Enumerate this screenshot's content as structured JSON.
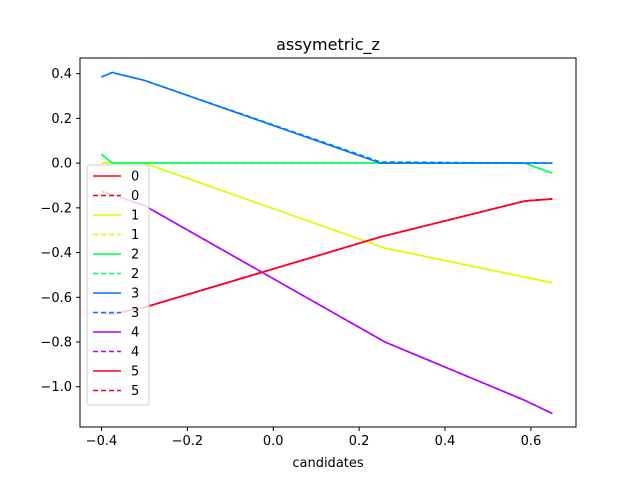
{
  "chart_data": {
    "type": "line",
    "title": "assymetric_z",
    "xlabel": "candidates",
    "ylabel": "",
    "xlim": [
      -0.45,
      0.705
    ],
    "ylim": [
      -1.18,
      0.47
    ],
    "xticks": [
      -0.4,
      -0.2,
      0.0,
      0.2,
      0.4,
      0.6
    ],
    "xtick_labels": [
      "−0.4",
      "−0.2",
      "0.0",
      "0.2",
      "0.4",
      "0.6"
    ],
    "yticks": [
      0.4,
      0.2,
      0.0,
      -0.2,
      -0.4,
      -0.6,
      -0.8,
      -1.0
    ],
    "ytick_labels": [
      "0.4",
      "0.2",
      "0.0",
      "−0.2",
      "−0.4",
      "−0.6",
      "−0.8",
      "−1.0"
    ],
    "grid": false,
    "legend_position": "lower-left",
    "series": [
      {
        "name": "0",
        "color": "#ff0000",
        "dash": "solid",
        "x": [
          -0.4,
          -0.375,
          -0.3,
          0.25,
          0.585,
          0.65
        ],
        "y": [
          -0.67,
          -0.675,
          -0.645,
          -0.33,
          -0.17,
          -0.16
        ]
      },
      {
        "name": "0",
        "color": "#ff0000",
        "dash": "dashed",
        "x": [
          -0.4,
          -0.375,
          -0.3,
          0.25,
          0.585,
          0.65
        ],
        "y": [
          -0.67,
          -0.675,
          -0.645,
          -0.33,
          -0.17,
          -0.16
        ]
      },
      {
        "name": "1",
        "color": "#d4ff00",
        "dash": "solid",
        "x": [
          -0.4,
          -0.375,
          -0.3,
          0.26,
          0.65
        ],
        "y": [
          0.0,
          0.0,
          0.0,
          -0.38,
          -0.535
        ]
      },
      {
        "name": "1",
        "color": "#d4ff00",
        "dash": "dashed",
        "x": [
          -0.4,
          -0.375,
          -0.3,
          0.26,
          0.65
        ],
        "y": [
          0.0,
          0.0,
          0.0,
          -0.38,
          -0.535
        ]
      },
      {
        "name": "2",
        "color": "#00ff55",
        "dash": "solid",
        "x": [
          -0.4,
          -0.375,
          0.26,
          0.585,
          0.65
        ],
        "y": [
          0.04,
          0.0,
          0.0,
          0.0,
          -0.045
        ]
      },
      {
        "name": "2",
        "color": "#00ff55",
        "dash": "dashed",
        "x": [
          -0.4,
          -0.375,
          0.26,
          0.585,
          0.65
        ],
        "y": [
          0.04,
          0.0,
          0.0,
          0.0,
          -0.045
        ]
      },
      {
        "name": "3",
        "color": "#0077ff",
        "dash": "solid",
        "x": [
          -0.4,
          -0.375,
          -0.3,
          0.25,
          0.585,
          0.65
        ],
        "y": [
          0.385,
          0.405,
          0.37,
          0.0,
          0.0,
          0.0
        ]
      },
      {
        "name": "3",
        "color": "#0077ff",
        "dash": "dashed",
        "x": [
          -0.4,
          -0.375,
          -0.3,
          0.25,
          0.585,
          0.65
        ],
        "y": [
          0.385,
          0.405,
          0.37,
          0.005,
          0.0,
          0.0
        ]
      },
      {
        "name": "4",
        "color": "#b300ff",
        "dash": "solid",
        "x": [
          -0.4,
          -0.3,
          0.26,
          0.585,
          0.65
        ],
        "y": [
          -0.125,
          -0.19,
          -0.8,
          -1.06,
          -1.12
        ]
      },
      {
        "name": "4",
        "color": "#b300ff",
        "dash": "dashed",
        "x": [
          -0.4,
          -0.3,
          0.26,
          0.585,
          0.65
        ],
        "y": [
          -0.125,
          -0.19,
          -0.8,
          -1.06,
          -1.12
        ]
      },
      {
        "name": "5",
        "color": "#ff0022",
        "dash": "solid",
        "x": [
          -0.4,
          -0.375,
          -0.3,
          0.25,
          0.585,
          0.65
        ],
        "y": [
          -0.67,
          -0.675,
          -0.645,
          -0.33,
          -0.17,
          -0.16
        ]
      },
      {
        "name": "5",
        "color": "#ff0022",
        "dash": "dashed",
        "x": [
          -0.4,
          -0.375,
          -0.3,
          0.25,
          0.585,
          0.65
        ],
        "y": [
          -0.67,
          -0.675,
          -0.645,
          -0.33,
          -0.17,
          -0.16
        ]
      }
    ]
  }
}
